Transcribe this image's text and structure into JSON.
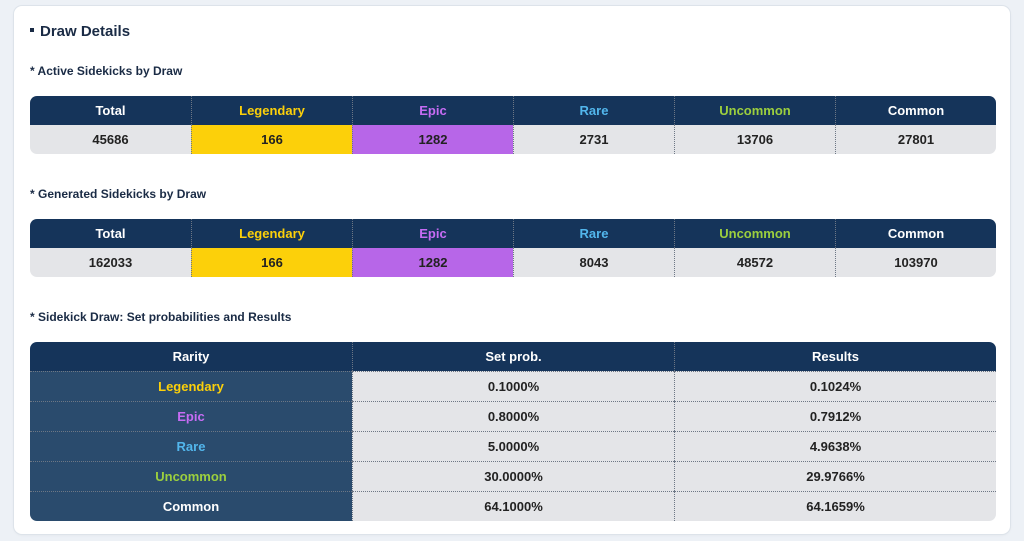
{
  "page": {
    "title": "Draw Details"
  },
  "active": {
    "title": "* Active Sidekicks by Draw",
    "headers": [
      "Total",
      "Legendary",
      "Epic",
      "Rare",
      "Uncommon",
      "Common"
    ],
    "values": [
      "45686",
      "166",
      "1282",
      "2731",
      "13706",
      "27801"
    ]
  },
  "generated": {
    "title": "* Generated Sidekicks by Draw",
    "headers": [
      "Total",
      "Legendary",
      "Epic",
      "Rare",
      "Uncommon",
      "Common"
    ],
    "values": [
      "162033",
      "166",
      "1282",
      "8043",
      "48572",
      "103970"
    ]
  },
  "probabilities": {
    "title": "* Sidekick Draw: Set probabilities and Results",
    "headers": [
      "Rarity",
      "Set prob.",
      "Results"
    ],
    "rows": [
      {
        "rarity": "Legendary",
        "set": "0.1000%",
        "result": "0.1024%"
      },
      {
        "rarity": "Epic",
        "set": "0.8000%",
        "result": "0.7912%"
      },
      {
        "rarity": "Rare",
        "set": "5.0000%",
        "result": "4.9638%"
      },
      {
        "rarity": "Uncommon",
        "set": "30.0000%",
        "result": "29.9766%"
      },
      {
        "rarity": "Common",
        "set": "64.1000%",
        "result": "64.1659%"
      }
    ]
  },
  "colors": {
    "header_bg": "#15345a",
    "legendary": "#fcd00a",
    "epic": "#b766e8",
    "rare": "#52b6ec",
    "uncommon": "#9ccf3e",
    "common": "#ffffff"
  }
}
